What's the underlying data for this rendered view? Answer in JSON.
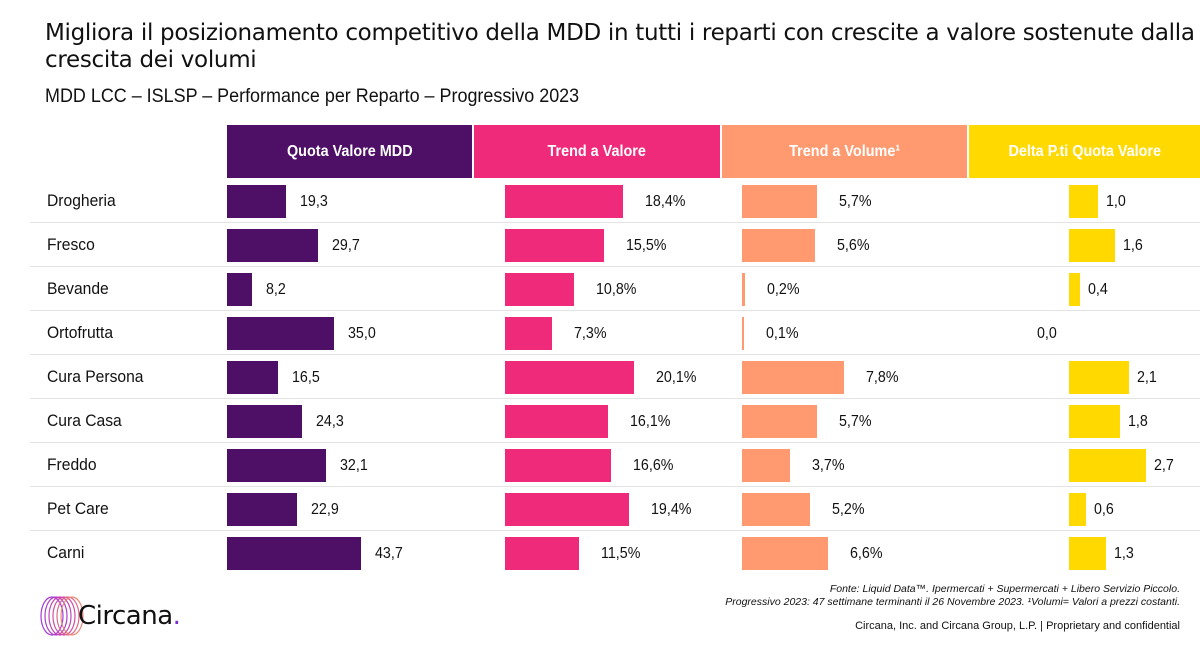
{
  "header": {
    "title": "Migliora il posizionamento competitivo della MDD in tutti i reparti con crescite a valore sostenute dalla crescita dei volumi",
    "subtitle": "MDD LCC – ISLSP – Performance per Reparto – Progressivo 2023"
  },
  "colors": {
    "quota": "#4d1066",
    "trend_valore": "#ef2a7a",
    "trend_volume": "#ff9a70",
    "delta": "#ffd900"
  },
  "chart_data": {
    "type": "bar",
    "orientation": "horizontal",
    "title": "MDD LCC – ISLSP – Performance per Reparto – Progressivo 2023",
    "categories": [
      "Drogheria",
      "Fresco",
      "Bevande",
      "Ortofrutta",
      "Cura Persona",
      "Cura Casa",
      "Freddo",
      "Pet Care",
      "Carni"
    ],
    "series": [
      {
        "name": "Quota Valore MDD",
        "values": [
          19.3,
          29.7,
          8.2,
          35.0,
          16.5,
          24.3,
          32.1,
          22.9,
          43.7
        ],
        "labels": [
          "19,3",
          "29,7",
          "8,2",
          "35,0",
          "16,5",
          "24,3",
          "32,1",
          "22,9",
          "43,7"
        ],
        "color": "#4d1066"
      },
      {
        "name": "Trend a Valore",
        "values": [
          18.4,
          15.5,
          10.8,
          7.3,
          20.1,
          16.1,
          16.6,
          19.4,
          11.5
        ],
        "labels": [
          "18,4%",
          "15,5%",
          "10,8%",
          "7,3%",
          "20,1%",
          "16,1%",
          "16,6%",
          "19,4%",
          "11,5%"
        ],
        "unit": "%",
        "color": "#ef2a7a"
      },
      {
        "name": "Trend a Volume¹",
        "values": [
          5.7,
          5.6,
          0.2,
          0.1,
          7.8,
          5.7,
          3.7,
          5.2,
          6.6
        ],
        "labels": [
          "5,7%",
          "5,6%",
          "0,2%",
          "0,1%",
          "7,8%",
          "5,7%",
          "3,7%",
          "5,2%",
          "6,6%"
        ],
        "unit": "%",
        "color": "#ff9a70"
      },
      {
        "name": "Delta P.ti Quota Valore",
        "values": [
          1.0,
          1.6,
          0.4,
          0.0,
          2.1,
          1.8,
          2.7,
          0.6,
          1.3
        ],
        "labels": [
          "1,0",
          "1,6",
          "0,4",
          "0,0",
          "2,1",
          "1,8",
          "2,7",
          "0,6",
          "1,3"
        ],
        "color": "#ffd900"
      }
    ],
    "xlabel": "",
    "ylabel": "",
    "grid": false,
    "legend": "none"
  },
  "footer": {
    "source_line1": "Fonte: Liquid Data™. Ipermercati + Supermercati + Libero Servizio Piccolo.",
    "source_line2": "Progressivo 2023: 47 settimane terminanti il 26 Novembre 2023. ¹Volumi= Valori a prezzi costanti.",
    "copyright": "Circana, Inc. and Circana Group, L.P. |  Proprietary and confidential",
    "logo_text": "Circana",
    "logo_dot": "."
  }
}
